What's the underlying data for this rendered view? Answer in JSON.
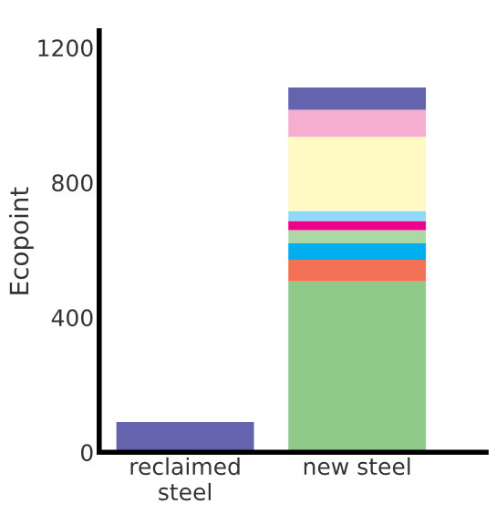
{
  "chart_data": {
    "type": "bar",
    "stacked": true,
    "ylabel": "Ecopoint",
    "categories": [
      "reclaimed\nsteel",
      "new steel"
    ],
    "series": [
      {
        "color": "#8fca8a",
        "values": [
          null,
          507
        ]
      },
      {
        "color": "#f37155",
        "values": [
          null,
          64
        ]
      },
      {
        "color": "#00aeef",
        "values": [
          null,
          49
        ]
      },
      {
        "color": "#acd8a7",
        "values": [
          null,
          39
        ]
      },
      {
        "color": "#ec008c",
        "values": [
          null,
          27
        ]
      },
      {
        "color": "#8fd8f8",
        "values": [
          null,
          30
        ]
      },
      {
        "color": "#fff9c4",
        "values": [
          null,
          220
        ]
      },
      {
        "color": "#f5aed0",
        "values": [
          null,
          80
        ]
      },
      {
        "color": "#6363ae",
        "values": [
          90,
          66
        ]
      }
    ],
    "ylim": [
      0,
      1250
    ],
    "yticks": [
      0,
      400,
      800,
      1200
    ],
    "grid": false,
    "legend": false
  }
}
